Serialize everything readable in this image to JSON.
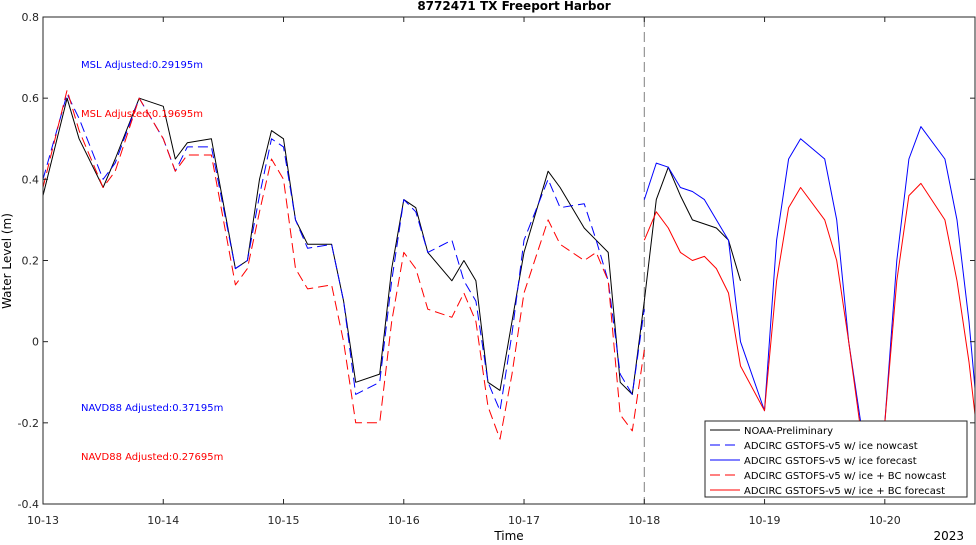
{
  "chart_data": {
    "type": "line",
    "title": "8772471 TX Freeport Harbor",
    "xlabel": "Time",
    "ylabel": "Water Level (m)",
    "x_ticks": [
      "10-13",
      "10-14",
      "10-15",
      "10-16",
      "10-17",
      "10-18",
      "10-19",
      "10-20"
    ],
    "x_year_label": "2023",
    "xlim": [
      "2023-10-13 00:00",
      "2023-10-20 21:00"
    ],
    "ylim": [
      -0.4,
      0.8
    ],
    "y_ticks": [
      "-0.4",
      "-0.2",
      "0",
      "0.2",
      "0.4",
      "0.6",
      "0.8"
    ],
    "grid": false,
    "legend_position": "bottom-right",
    "nowcast_forecast_divider": "2023-10-18 00:00",
    "annotations": [
      {
        "text": "MSL Adjusted:0.29195m",
        "color": "#0000ff"
      },
      {
        "text": "MSL Adjusted:0.19695m",
        "color": "#ff0000"
      },
      {
        "text": "NAVD88 Adjusted:0.37195m",
        "color": "#0000ff"
      },
      {
        "text": "NAVD88 Adjusted:0.27695m",
        "color": "#ff0000"
      }
    ],
    "series": [
      {
        "name": "NOAA-Preliminary",
        "color": "#000000",
        "dash": "solid",
        "x": [
          0,
          0.2,
          0.3,
          0.5,
          0.6,
          0.8,
          1.0,
          1.1,
          1.2,
          1.4,
          1.6,
          1.7,
          1.8,
          1.9,
          2.0,
          2.1,
          2.2,
          2.4,
          2.5,
          2.6,
          2.8,
          2.9,
          3.0,
          3.1,
          3.2,
          3.4,
          3.5,
          3.6,
          3.7,
          3.8,
          3.9,
          4.0,
          4.2,
          4.3,
          4.5,
          4.6,
          4.7,
          4.8,
          4.9,
          5.0,
          5.1,
          5.2,
          5.3,
          5.4,
          5.6,
          5.7,
          5.8
        ],
        "y": [
          0.36,
          0.6,
          0.5,
          0.38,
          0.45,
          0.6,
          0.58,
          0.45,
          0.49,
          0.5,
          0.18,
          0.2,
          0.4,
          0.52,
          0.5,
          0.3,
          0.24,
          0.24,
          0.1,
          -0.1,
          -0.08,
          0.18,
          0.35,
          0.33,
          0.22,
          0.15,
          0.2,
          0.15,
          -0.1,
          -0.12,
          0.05,
          0.22,
          0.42,
          0.38,
          0.28,
          0.25,
          0.22,
          -0.1,
          -0.13,
          0.1,
          0.35,
          0.43,
          0.36,
          0.3,
          0.28,
          0.25,
          0.15
        ]
      },
      {
        "name": "ADCIRC GSTOFS-v5 w/ ice nowcast",
        "color": "#0000ff",
        "dash": "dashed",
        "x": [
          0,
          0.2,
          0.3,
          0.5,
          0.6,
          0.8,
          1.0,
          1.1,
          1.2,
          1.4,
          1.6,
          1.7,
          1.8,
          1.9,
          2.0,
          2.1,
          2.2,
          2.4,
          2.5,
          2.6,
          2.8,
          2.9,
          3.0,
          3.1,
          3.2,
          3.4,
          3.5,
          3.6,
          3.7,
          3.8,
          3.9,
          4.0,
          4.2,
          4.3,
          4.5,
          4.6,
          4.7,
          4.8,
          4.9,
          5.0
        ],
        "y": [
          0.4,
          0.61,
          0.55,
          0.4,
          0.44,
          0.6,
          0.5,
          0.42,
          0.48,
          0.48,
          0.18,
          0.2,
          0.36,
          0.5,
          0.48,
          0.3,
          0.23,
          0.24,
          0.1,
          -0.13,
          -0.1,
          0.15,
          0.35,
          0.32,
          0.22,
          0.25,
          0.15,
          0.1,
          -0.1,
          -0.17,
          0.02,
          0.25,
          0.4,
          0.33,
          0.34,
          0.25,
          0.15,
          -0.08,
          -0.13,
          0.08
        ]
      },
      {
        "name": "ADCIRC GSTOFS-v5 w/ ice forecast",
        "color": "#0000ff",
        "dash": "solid",
        "x": [
          5.0,
          5.1,
          5.2,
          5.3,
          5.4,
          5.5,
          5.6,
          5.7,
          5.8,
          6.0,
          6.1,
          6.2,
          6.3,
          6.5,
          6.6,
          6.7,
          6.8,
          7.0,
          7.1,
          7.2,
          7.3,
          7.5,
          7.6,
          7.7,
          7.8
        ],
        "y": [
          0.35,
          0.44,
          0.43,
          0.38,
          0.37,
          0.35,
          0.3,
          0.25,
          0.0,
          -0.17,
          0.25,
          0.45,
          0.5,
          0.45,
          0.3,
          0.0,
          -0.2,
          -0.2,
          0.2,
          0.45,
          0.53,
          0.45,
          0.3,
          0.05,
          -0.28
        ]
      },
      {
        "name": "ADCIRC GSTOFS-v5 w/ ice + BC nowcast",
        "color": "#ff0000",
        "dash": "dashed",
        "x": [
          0,
          0.2,
          0.3,
          0.5,
          0.6,
          0.8,
          1.0,
          1.1,
          1.2,
          1.4,
          1.6,
          1.7,
          1.8,
          1.9,
          2.0,
          2.1,
          2.2,
          2.4,
          2.5,
          2.6,
          2.8,
          2.9,
          3.0,
          3.1,
          3.2,
          3.4,
          3.5,
          3.6,
          3.7,
          3.8,
          3.9,
          4.0,
          4.2,
          4.3,
          4.5,
          4.6,
          4.7,
          4.8,
          4.9,
          5.0
        ],
        "y": [
          0.38,
          0.62,
          0.52,
          0.38,
          0.42,
          0.6,
          0.5,
          0.42,
          0.46,
          0.46,
          0.14,
          0.18,
          0.32,
          0.45,
          0.4,
          0.18,
          0.13,
          0.14,
          0.0,
          -0.2,
          -0.2,
          0.05,
          0.22,
          0.18,
          0.08,
          0.06,
          0.12,
          0.05,
          -0.16,
          -0.24,
          -0.08,
          0.12,
          0.3,
          0.24,
          0.2,
          0.22,
          0.15,
          -0.18,
          -0.22,
          -0.02
        ]
      },
      {
        "name": "ADCIRC GSTOFS-v5 w/ ice + BC forecast",
        "color": "#ff0000",
        "dash": "solid",
        "x": [
          5.0,
          5.1,
          5.2,
          5.3,
          5.4,
          5.5,
          5.6,
          5.7,
          5.8,
          6.0,
          6.1,
          6.2,
          6.3,
          6.5,
          6.6,
          6.7,
          6.8,
          7.0,
          7.1,
          7.2,
          7.3,
          7.5,
          7.6,
          7.7,
          7.8
        ],
        "y": [
          0.25,
          0.32,
          0.28,
          0.22,
          0.2,
          0.21,
          0.18,
          0.12,
          -0.06,
          -0.17,
          0.15,
          0.33,
          0.38,
          0.3,
          0.2,
          0.0,
          -0.22,
          -0.2,
          0.15,
          0.36,
          0.39,
          0.3,
          0.15,
          -0.05,
          -0.31
        ]
      }
    ]
  }
}
